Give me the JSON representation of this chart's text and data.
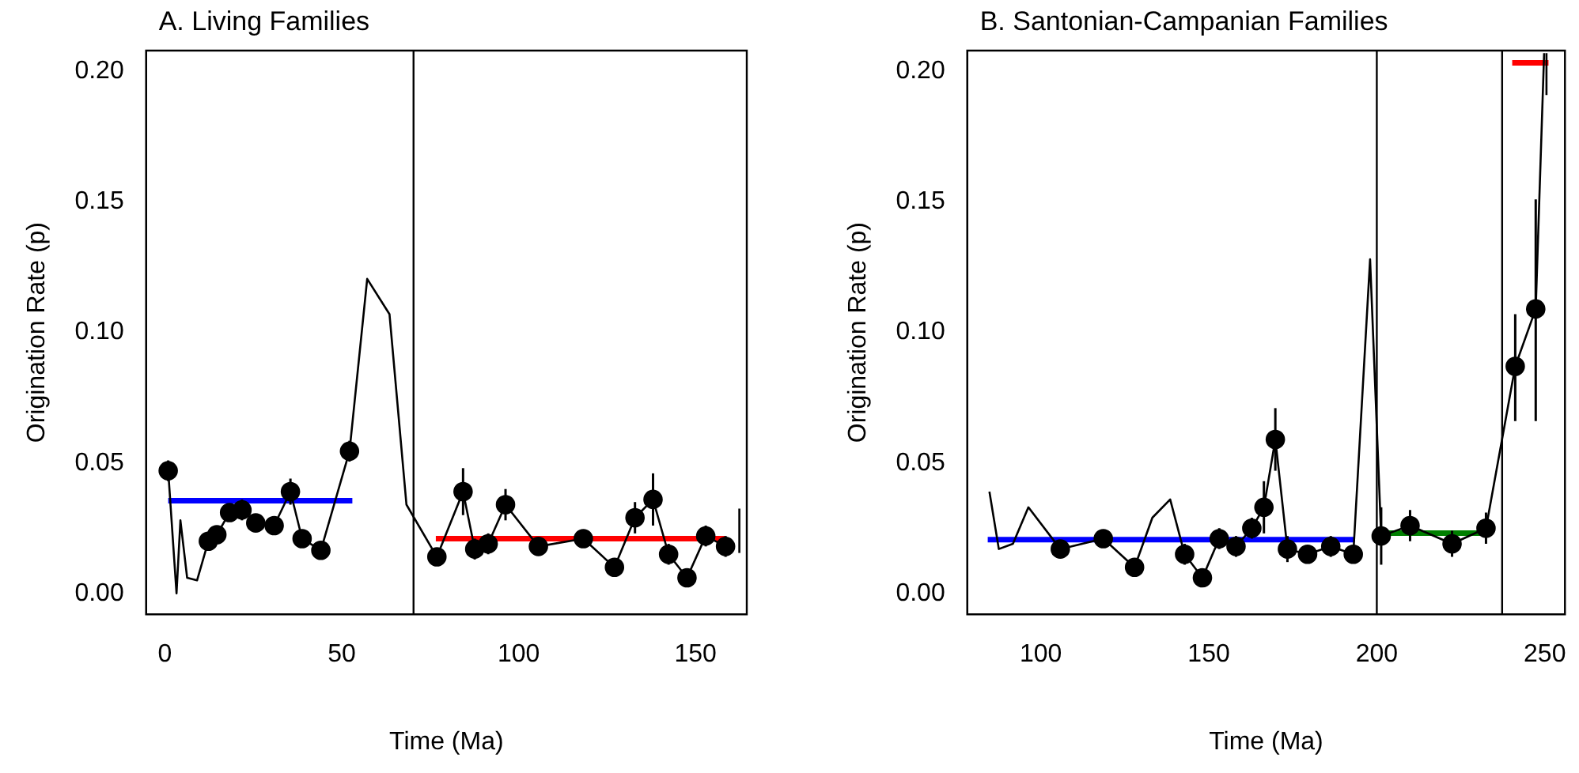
{
  "chart_data": [
    {
      "type": "line",
      "title": "A. Living Families",
      "xlabel": "Time (Ma)",
      "ylabel": "Origination Rate (p)",
      "xlim": [
        -5.3,
        164.5
      ],
      "ylim": [
        -0.008,
        0.208
      ],
      "xticks": [
        0,
        50,
        100,
        150
      ],
      "yticks": [
        {
          "value": 0,
          "label": "0.00"
        },
        {
          "value": 0.05,
          "label": "0.05"
        },
        {
          "value": 0.1,
          "label": "0.10"
        },
        {
          "value": 0.15,
          "label": "0.15"
        },
        {
          "value": 0.2,
          "label": "0.20"
        }
      ],
      "grid": false,
      "legend": false,
      "ref_lines": [
        {
          "axis": "x",
          "value": 70.3,
          "color": "#000000"
        }
      ],
      "series": [
        {
          "type": "line",
          "marker": "none",
          "color": "#000000",
          "x": [
            0.95,
            3.3,
            4.4,
            6.3,
            9.1,
            12.3,
            14.7,
            18.3,
            21.8,
            25.7,
            30.9,
            35.5,
            38.8,
            44.1,
            52.2,
            57.2,
            63.5,
            68.3,
            76.9,
            84.3,
            87.6,
            91.4,
            96.3,
            105.6,
            118.3,
            127.1,
            132.9,
            138.0,
            142.4,
            147.6,
            152.9,
            158.5
          ],
          "values": [
            0.047,
            0.0,
            0.028,
            0.006,
            0.005,
            0.02,
            0.0225,
            0.031,
            0.032,
            0.027,
            0.026,
            0.039,
            0.021,
            0.0165,
            0.0545,
            0.1205,
            0.107,
            0.034,
            0.014,
            0.039,
            0.017,
            0.019,
            0.034,
            0.018,
            0.021,
            0.01,
            0.029,
            0.036,
            0.015,
            0.006,
            0.022,
            0.018
          ]
        },
        {
          "type": "scatter",
          "marker": "circle",
          "color": "#000000",
          "x": [
            0.95,
            12.3,
            14.7,
            18.3,
            21.8,
            25.7,
            30.9,
            35.5,
            38.8,
            44.1,
            52.2,
            76.9,
            84.3,
            87.6,
            91.4,
            96.3,
            105.6,
            118.3,
            127.1,
            132.9,
            138.0,
            142.4,
            147.6,
            152.9,
            158.5
          ],
          "values": [
            0.047,
            0.02,
            0.0225,
            0.031,
            0.032,
            0.027,
            0.026,
            0.039,
            0.021,
            0.0165,
            0.0545,
            0.014,
            0.039,
            0.017,
            0.019,
            0.034,
            0.018,
            0.021,
            0.01,
            0.029,
            0.036,
            0.015,
            0.006,
            0.022,
            0.018
          ],
          "errors": [
            0.004,
            0.003,
            0.003,
            0.003,
            0.004,
            0.003,
            0.003,
            0.005,
            0.003,
            0.003,
            0.004,
            0.003,
            0.009,
            0.004,
            0.004,
            0.006,
            0.003,
            0.003,
            0.003,
            0.006,
            0.01,
            0.004,
            0.003,
            0.004,
            0.004
          ]
        },
        {
          "type": "line",
          "marker": "none",
          "color": "#000000",
          "x": [
            162.4,
            162.4
          ],
          "values": [
            0.0155,
            0.0325
          ]
        },
        {
          "type": "line",
          "marker": "none",
          "color": "#0000ff",
          "x": [
            0.95,
            53.0
          ],
          "values": [
            0.0355,
            0.0355
          ]
        },
        {
          "type": "line",
          "marker": "none",
          "color": "#ff0000",
          "x": [
            76.6,
            158.5
          ],
          "values": [
            0.021,
            0.021
          ]
        }
      ]
    },
    {
      "type": "line",
      "title": "B. Santonian-Campanian Families",
      "xlabel": "Time (Ma)",
      "ylabel": "Origination Rate (p)",
      "xlim": [
        78.1,
        256
      ],
      "ylim": [
        -0.008,
        0.208
      ],
      "xticks": [
        100,
        150,
        200,
        250
      ],
      "yticks": [
        {
          "value": 0,
          "label": "0.00"
        },
        {
          "value": 0.05,
          "label": "0.05"
        },
        {
          "value": 0.1,
          "label": "0.10"
        },
        {
          "value": 0.15,
          "label": "0.15"
        },
        {
          "value": 0.2,
          "label": "0.20"
        }
      ],
      "grid": false,
      "legend": false,
      "ref_lines": [
        {
          "axis": "x",
          "value": 200,
          "color": "#000000"
        },
        {
          "axis": "x",
          "value": 237.3,
          "color": "#000000"
        }
      ],
      "series": [
        {
          "type": "line",
          "marker": "none",
          "color": "#000000",
          "x": [
            84.7,
            87.5,
            91.7,
            96.3,
            105.8,
            118.6,
            127.9,
            133.2,
            138.5,
            142.8,
            148.1,
            153.1,
            158.1,
            162.8,
            166.4,
            169.8,
            173.4,
            179.4,
            186.3,
            193.0,
            198.0,
            201.3,
            209.9,
            222.4,
            232.5,
            241.2,
            247.3,
            249.8
          ],
          "values": [
            0.039,
            0.017,
            0.019,
            0.033,
            0.017,
            0.021,
            0.01,
            0.029,
            0.036,
            0.015,
            0.006,
            0.021,
            0.018,
            0.025,
            0.033,
            0.059,
            0.017,
            0.015,
            0.018,
            0.015,
            0.128,
            0.022,
            0.026,
            0.019,
            0.025,
            0.087,
            0.109,
            0.207
          ]
        },
        {
          "type": "scatter",
          "marker": "circle",
          "color": "#000000",
          "x": [
            105.8,
            118.6,
            127.9,
            142.8,
            148.1,
            153.1,
            158.1,
            162.8,
            166.4,
            169.8,
            173.4,
            179.4,
            186.3,
            193.0,
            201.3,
            209.9,
            222.4,
            232.5,
            241.2,
            247.3
          ],
          "values": [
            0.017,
            0.021,
            0.01,
            0.015,
            0.006,
            0.021,
            0.018,
            0.025,
            0.033,
            0.059,
            0.017,
            0.015,
            0.018,
            0.015,
            0.022,
            0.026,
            0.019,
            0.025,
            0.087,
            0.109
          ],
          "errors": [
            0.003,
            0.003,
            0.003,
            0.004,
            0.003,
            0.004,
            0.004,
            0.004,
            0.01,
            0.012,
            0.005,
            0.003,
            0.004,
            0.003,
            0.011,
            0.006,
            0.005,
            0.006,
            [
              0.066,
              0.107
            ],
            [
              0.066,
              0.151
            ]
          ]
        },
        {
          "type": "line",
          "marker": "none",
          "color": "#000000",
          "x": [
            250.5,
            250.5
          ],
          "values": [
            0.191,
            0.207
          ]
        },
        {
          "type": "line",
          "marker": "none",
          "color": "#0000ff",
          "x": [
            84.2,
            193.4
          ],
          "values": [
            0.0206,
            0.0206
          ]
        },
        {
          "type": "line",
          "marker": "none",
          "color": "#007f00",
          "x": [
            201.0,
            233.2
          ],
          "values": [
            0.0231,
            0.0231
          ]
        },
        {
          "type": "line",
          "marker": "none",
          "color": "#ff0000",
          "x": [
            240.3,
            251.1
          ],
          "values": [
            0.2033,
            0.2033
          ]
        }
      ]
    }
  ]
}
